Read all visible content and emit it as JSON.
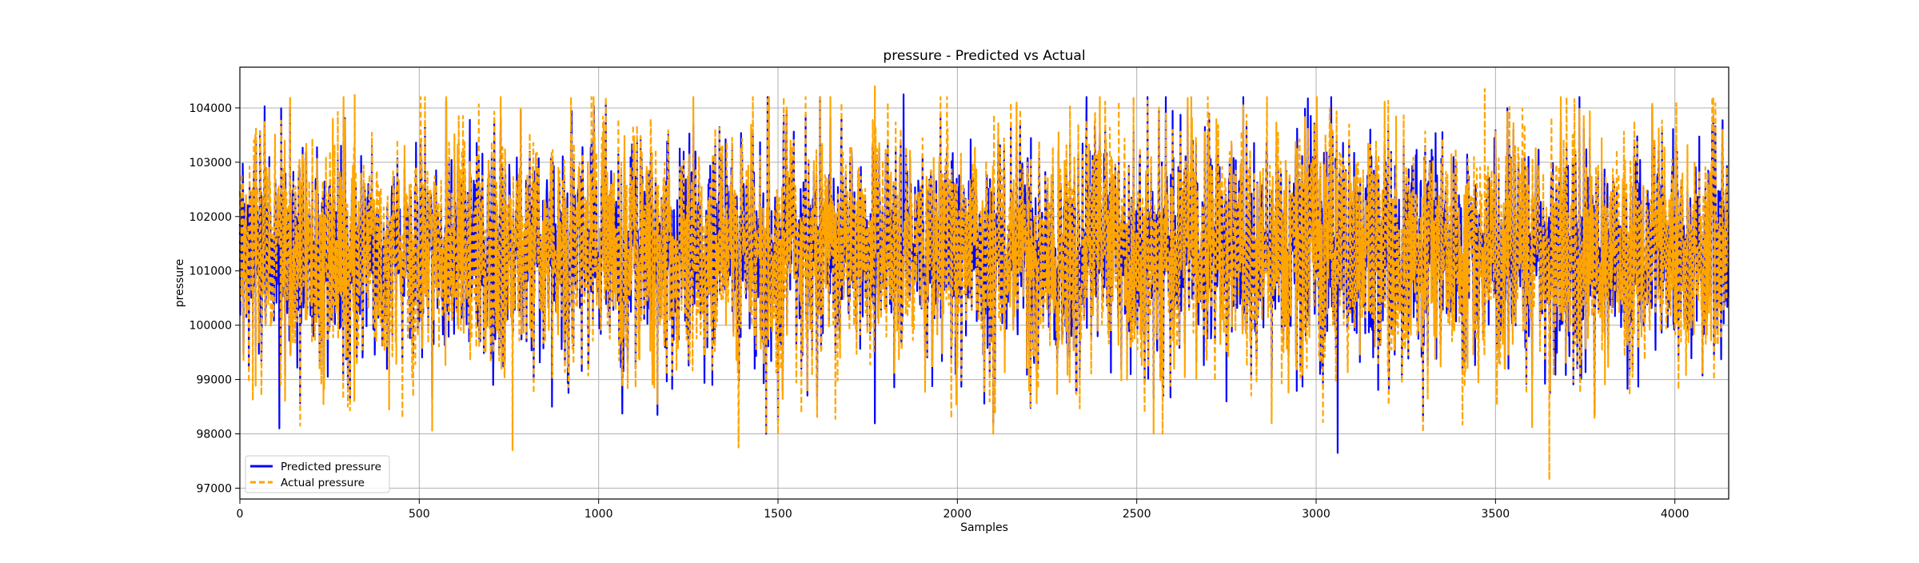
{
  "chart_data": {
    "type": "line",
    "title": "pressure - Predicted vs Actual",
    "xlabel": "Samples",
    "ylabel": "pressure",
    "xlim": [
      0,
      4150
    ],
    "ylim": [
      96800,
      104750
    ],
    "x_ticks": [
      0,
      500,
      1000,
      1500,
      2000,
      2500,
      3000,
      3500,
      4000
    ],
    "y_ticks": [
      97000,
      98000,
      99000,
      100000,
      101000,
      102000,
      103000,
      104000
    ],
    "grid": true,
    "legend_position": "lower-left",
    "n_samples": 4150,
    "series_summary": {
      "mean": 101400,
      "typical_min": 98000,
      "typical_max": 104200,
      "observed_min": 97150,
      "observed_max": 104400
    },
    "series": [
      {
        "name": "Predicted pressure",
        "color": "#0000ff",
        "line_style": "solid",
        "extremes": [
          {
            "x": 110,
            "y": 98100
          },
          {
            "x": 1850,
            "y": 104250
          },
          {
            "x": 3060,
            "y": 97650
          },
          {
            "x": 870,
            "y": 98500
          }
        ]
      },
      {
        "name": "Actual pressure",
        "color": "#ffa500",
        "line_style": "dashed",
        "extremes": [
          {
            "x": 3650,
            "y": 97150
          },
          {
            "x": 1770,
            "y": 104400
          },
          {
            "x": 3470,
            "y": 104350
          },
          {
            "x": 760,
            "y": 97700
          },
          {
            "x": 1390,
            "y": 97750
          },
          {
            "x": 320,
            "y": 104250
          }
        ]
      }
    ]
  }
}
